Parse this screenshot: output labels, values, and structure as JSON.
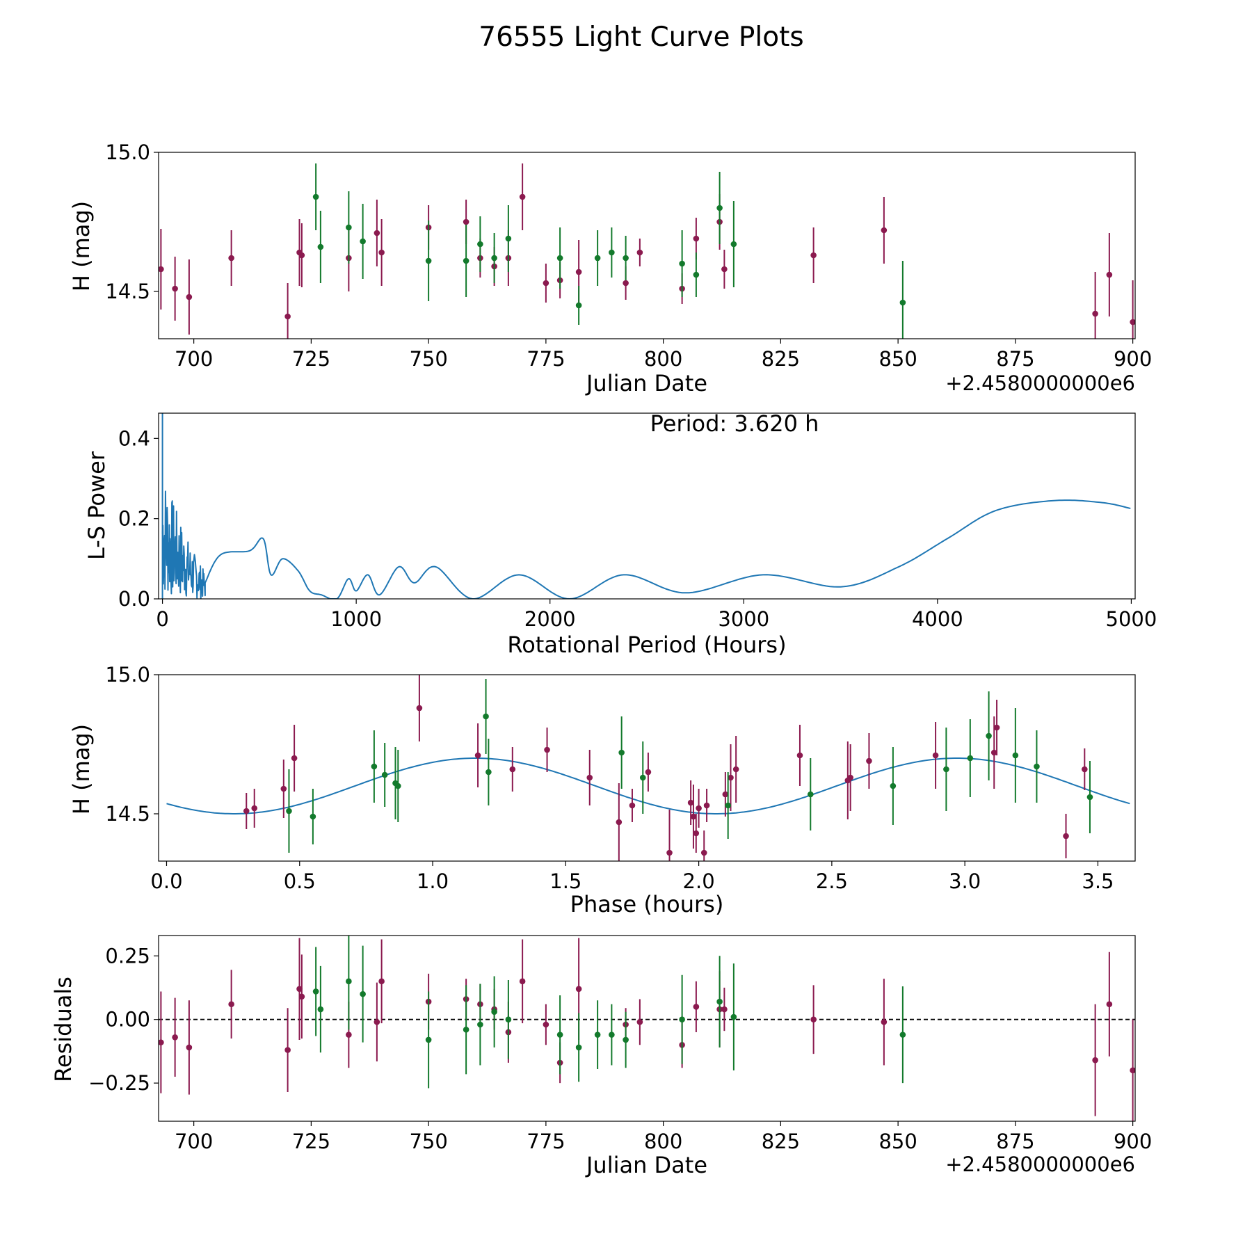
{
  "figure_title": "76555 Light Curve Plots",
  "colors": {
    "band_a": "#8b1a4f",
    "band_b": "#137a2c",
    "curve": "#1f77b4"
  },
  "chart_data": [
    {
      "type": "scatter",
      "title": "",
      "xlabel": "Julian Date",
      "ylabel": "H (mag)",
      "x_offset_label": "+2.4580000000e6",
      "xlim": [
        692.5,
        900.5
      ],
      "ylim": [
        14.33,
        15.0
      ],
      "y_inverted": false,
      "x_ticks": [
        700,
        725,
        750,
        775,
        800,
        825,
        850,
        875,
        900
      ],
      "x_tick_labels": [
        "700",
        "725",
        "750",
        "775",
        "800",
        "825",
        "850",
        "875",
        "900"
      ],
      "y_ticks": [
        15.0,
        14.5
      ],
      "y_tick_labels": [
        "15.0",
        "14.5"
      ],
      "series": [
        {
          "name": "band_a",
          "color": "#8b1a4f",
          "points": [
            [
              693,
              14.58,
              0.145
            ],
            [
              696,
              14.51,
              0.115
            ],
            [
              699,
              14.48,
              0.135
            ],
            [
              708,
              14.62,
              0.1
            ],
            [
              720,
              14.41,
              0.12
            ],
            [
              722.5,
              14.64,
              0.12
            ],
            [
              723,
              14.63,
              0.115
            ],
            [
              733,
              14.62,
              0.12
            ],
            [
              739,
              14.71,
              0.12
            ],
            [
              740,
              14.64,
              0.12
            ],
            [
              750,
              14.73,
              0.08
            ],
            [
              758,
              14.75,
              0.08
            ],
            [
              761,
              14.62,
              0.07
            ],
            [
              764,
              14.59,
              0.07
            ],
            [
              767,
              14.62,
              0.1
            ],
            [
              770,
              14.84,
              0.12
            ],
            [
              775,
              14.53,
              0.07
            ],
            [
              778,
              14.54,
              0.065
            ],
            [
              782,
              14.57,
              0.115
            ],
            [
              792,
              14.53,
              0.06
            ],
            [
              795,
              14.64,
              0.05
            ],
            [
              804,
              14.51,
              0.055
            ],
            [
              807,
              14.69,
              0.075
            ],
            [
              812,
              14.75,
              0.1
            ],
            [
              813,
              14.58,
              0.07
            ],
            [
              832,
              14.63,
              0.1
            ],
            [
              847,
              14.72,
              0.12
            ],
            [
              892,
              14.42,
              0.15
            ],
            [
              895,
              14.56,
              0.15
            ],
            [
              900,
              14.39,
              0.15
            ]
          ]
        },
        {
          "name": "band_b",
          "color": "#137a2c",
          "points": [
            [
              726,
              14.84,
              0.12
            ],
            [
              727,
              14.66,
              0.13
            ],
            [
              733,
              14.73,
              0.13
            ],
            [
              736,
              14.68,
              0.135
            ],
            [
              750,
              14.61,
              0.145
            ],
            [
              758,
              14.61,
              0.13
            ],
            [
              761,
              14.67,
              0.1
            ],
            [
              764,
              14.62,
              0.09
            ],
            [
              767,
              14.69,
              0.12
            ],
            [
              778,
              14.62,
              0.11
            ],
            [
              782,
              14.45,
              0.07
            ],
            [
              786,
              14.62,
              0.1
            ],
            [
              789,
              14.64,
              0.09
            ],
            [
              792,
              14.62,
              0.08
            ],
            [
              804,
              14.6,
              0.12
            ],
            [
              807,
              14.56,
              0.08
            ],
            [
              812,
              14.8,
              0.13
            ],
            [
              815,
              14.67,
              0.155
            ],
            [
              851,
              14.46,
              0.15
            ]
          ]
        }
      ]
    },
    {
      "type": "line",
      "title": "",
      "xlabel": "Rotational Period (Hours)",
      "ylabel": "L-S Power",
      "annotation": "Period: 3.620 h",
      "xlim": [
        -20,
        5020
      ],
      "ylim": [
        0,
        0.463
      ],
      "x_ticks": [
        0,
        1000,
        2000,
        3000,
        4000,
        5000
      ],
      "x_tick_labels": [
        "0",
        "1000",
        "2000",
        "3000",
        "4000",
        "5000"
      ],
      "y_ticks": [
        0.0,
        0.2,
        0.4
      ],
      "y_tick_labels": [
        "0.0",
        "0.2",
        "0.4"
      ],
      "series": [
        {
          "name": "L-S power",
          "color": "#1f77b4",
          "x": [
            0,
            300,
            450,
            520,
            560,
            620,
            700,
            760,
            820,
            900,
            960,
            1000,
            1060,
            1120,
            1220,
            1300,
            1410,
            1600,
            1840,
            2100,
            2380,
            2700,
            3100,
            3500,
            3800,
            4050,
            4300,
            4600,
            4850,
            5000
          ],
          "y": [
            0.47,
            0.11,
            0.12,
            0.15,
            0.06,
            0.1,
            0.07,
            0.02,
            0.01,
            0.0,
            0.05,
            0.02,
            0.06,
            0.01,
            0.08,
            0.04,
            0.08,
            0.0,
            0.06,
            0.0,
            0.06,
            0.015,
            0.06,
            0.03,
            0.08,
            0.15,
            0.22,
            0.245,
            0.24,
            0.225
          ],
          "noise_band": [
            0,
            220,
            0.33
          ]
        }
      ]
    },
    {
      "type": "scatter",
      "title": "",
      "xlabel": "Phase (hours)",
      "ylabel": "H (mag)",
      "xlim": [
        -0.03,
        3.64
      ],
      "ylim": [
        14.33,
        15.0
      ],
      "x_ticks": [
        0.0,
        0.5,
        1.0,
        1.5,
        2.0,
        2.5,
        3.0,
        3.5
      ],
      "x_tick_labels": [
        "0.0",
        "0.5",
        "1.0",
        "1.5",
        "2.0",
        "2.5",
        "3.0",
        "3.5"
      ],
      "y_ticks": [
        15.0,
        14.5
      ],
      "y_tick_labels": [
        "15.0",
        "14.5"
      ],
      "fit": {
        "period": 1.81,
        "mean": 14.6,
        "amplitude": 0.1,
        "peak_phase": 1.16,
        "color": "#1f77b4"
      },
      "series": [
        {
          "name": "band_a",
          "color": "#8b1a4f",
          "points": [
            [
              0.3,
              14.51,
              0.065
            ],
            [
              0.33,
              14.52,
              0.07
            ],
            [
              0.44,
              14.59,
              0.105
            ],
            [
              0.48,
              14.7,
              0.12
            ],
            [
              0.95,
              14.88,
              0.12
            ],
            [
              1.17,
              14.71,
              0.115
            ],
            [
              1.3,
              14.66,
              0.08
            ],
            [
              1.43,
              14.73,
              0.08
            ],
            [
              1.59,
              14.63,
              0.1
            ],
            [
              1.7,
              14.47,
              0.14
            ],
            [
              1.75,
              14.53,
              0.06
            ],
            [
              1.81,
              14.65,
              0.07
            ],
            [
              1.89,
              14.36,
              0.155
            ],
            [
              1.97,
              14.54,
              0.08
            ],
            [
              1.98,
              14.49,
              0.115
            ],
            [
              1.99,
              14.43,
              0.07
            ],
            [
              2.0,
              14.52,
              0.07
            ],
            [
              2.02,
              14.36,
              0.08
            ],
            [
              2.03,
              14.53,
              0.06
            ],
            [
              2.1,
              14.57,
              0.08
            ],
            [
              2.12,
              14.63,
              0.12
            ],
            [
              2.14,
              14.66,
              0.12
            ],
            [
              2.38,
              14.71,
              0.11
            ],
            [
              2.56,
              14.62,
              0.14
            ],
            [
              2.57,
              14.63,
              0.12
            ],
            [
              2.64,
              14.69,
              0.1
            ],
            [
              2.89,
              14.71,
              0.12
            ],
            [
              3.11,
              14.72,
              0.13
            ],
            [
              3.12,
              14.81,
              0.1
            ],
            [
              3.38,
              14.42,
              0.08
            ],
            [
              3.45,
              14.66,
              0.075
            ]
          ]
        },
        {
          "name": "band_b",
          "color": "#137a2c",
          "points": [
            [
              0.46,
              14.51,
              0.15
            ],
            [
              0.55,
              14.49,
              0.1
            ],
            [
              0.78,
              14.67,
              0.13
            ],
            [
              0.82,
              14.64,
              0.115
            ],
            [
              0.86,
              14.61,
              0.13
            ],
            [
              0.87,
              14.6,
              0.13
            ],
            [
              1.2,
              14.85,
              0.135
            ],
            [
              1.21,
              14.65,
              0.12
            ],
            [
              1.71,
              14.72,
              0.13
            ],
            [
              1.79,
              14.63,
              0.13
            ],
            [
              2.11,
              14.53,
              0.12
            ],
            [
              2.42,
              14.57,
              0.13
            ],
            [
              2.73,
              14.6,
              0.14
            ],
            [
              2.93,
              14.66,
              0.15
            ],
            [
              3.02,
              14.7,
              0.14
            ],
            [
              3.09,
              14.78,
              0.16
            ],
            [
              3.19,
              14.71,
              0.17
            ],
            [
              3.27,
              14.67,
              0.13
            ],
            [
              3.47,
              14.56,
              0.13
            ]
          ]
        }
      ]
    },
    {
      "type": "scatter",
      "title": "",
      "xlabel": "Julian Date",
      "ylabel": "Residuals",
      "x_offset_label": "+2.4580000000e6",
      "xlim": [
        692.5,
        900.5
      ],
      "ylim": [
        -0.4,
        0.33
      ],
      "x_ticks": [
        700,
        725,
        750,
        775,
        800,
        825,
        850,
        875,
        900
      ],
      "x_tick_labels": [
        "700",
        "725",
        "750",
        "775",
        "800",
        "825",
        "850",
        "875",
        "900"
      ],
      "y_ticks": [
        0.25,
        0.0,
        -0.25
      ],
      "y_tick_labels": [
        "0.25",
        "0.00",
        "−0.25"
      ],
      "reference_line": 0.0,
      "series": [
        {
          "name": "band_a",
          "color": "#8b1a4f",
          "points": [
            [
              693,
              -0.09,
              0.2
            ],
            [
              696,
              -0.07,
              0.155
            ],
            [
              699,
              -0.11,
              0.185
            ],
            [
              708,
              0.06,
              0.135
            ],
            [
              720,
              -0.12,
              0.165
            ],
            [
              722.5,
              0.12,
              0.2
            ],
            [
              723,
              0.09,
              0.165
            ],
            [
              733,
              -0.06,
              0.13
            ],
            [
              739,
              -0.01,
              0.155
            ],
            [
              740,
              0.15,
              0.165
            ],
            [
              750,
              0.07,
              0.11
            ],
            [
              758,
              0.08,
              0.08
            ],
            [
              761,
              0.06,
              0.08
            ],
            [
              764,
              0.04,
              0.08
            ],
            [
              767,
              -0.05,
              0.12
            ],
            [
              770,
              0.15,
              0.165
            ],
            [
              775,
              -0.02,
              0.08
            ],
            [
              778,
              -0.17,
              0.08
            ],
            [
              782,
              0.12,
              0.2
            ],
            [
              792,
              -0.02,
              0.065
            ],
            [
              795,
              -0.01,
              0.09
            ],
            [
              804,
              -0.1,
              0.09
            ],
            [
              807,
              0.05,
              0.1
            ],
            [
              812,
              0.04,
              0.15
            ],
            [
              813,
              0.04,
              0.085
            ],
            [
              832,
              0.0,
              0.135
            ],
            [
              847,
              -0.01,
              0.17
            ],
            [
              892,
              -0.16,
              0.22
            ],
            [
              895,
              0.06,
              0.205
            ],
            [
              900,
              -0.2,
              0.2
            ]
          ]
        },
        {
          "name": "band_b",
          "color": "#137a2c",
          "points": [
            [
              726,
              0.11,
              0.175
            ],
            [
              727,
              0.04,
              0.17
            ],
            [
              733,
              0.15,
              0.19
            ],
            [
              736,
              0.1,
              0.19
            ],
            [
              750,
              -0.08,
              0.19
            ],
            [
              758,
              -0.04,
              0.175
            ],
            [
              761,
              -0.02,
              0.16
            ],
            [
              764,
              0.03,
              0.14
            ],
            [
              767,
              0.0,
              0.155
            ],
            [
              778,
              -0.06,
              0.155
            ],
            [
              782,
              -0.11,
              0.135
            ],
            [
              786,
              -0.06,
              0.135
            ],
            [
              789,
              -0.06,
              0.12
            ],
            [
              792,
              -0.08,
              0.11
            ],
            [
              804,
              0.0,
              0.175
            ],
            [
              812,
              0.07,
              0.18
            ],
            [
              815,
              0.01,
              0.21
            ],
            [
              851,
              -0.06,
              0.19
            ]
          ]
        }
      ]
    }
  ]
}
